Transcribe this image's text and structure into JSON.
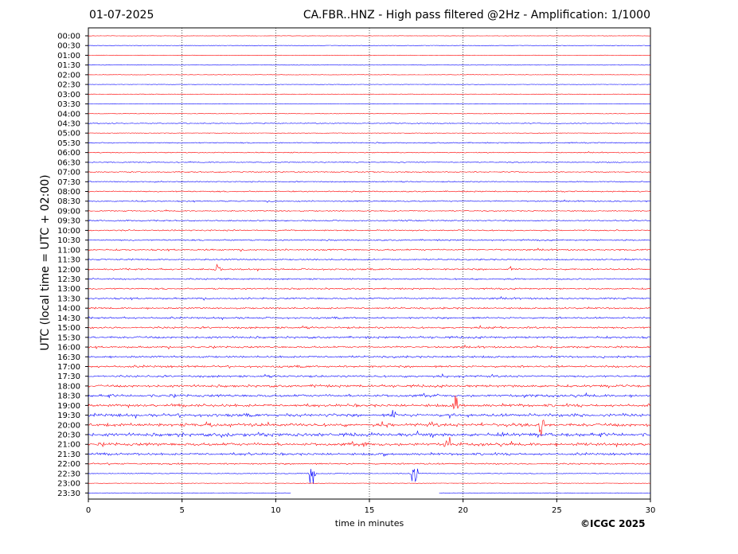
{
  "header": {
    "date": "01-07-2025",
    "title": "CA.FBR..HNZ - High pass filtered @2Hz - Amplification: 1/1000"
  },
  "footer": {
    "copyright": "©ICGC 2025"
  },
  "chart_data": {
    "type": "line",
    "xlabel": "time in minutes",
    "ylabel": "UTC (local time = UTC + 02:00)",
    "xlim": [
      0,
      30
    ],
    "x_ticks": [
      0,
      5,
      10,
      15,
      20,
      25,
      30
    ],
    "vertical_gridlines": [
      5,
      10,
      15,
      20,
      25
    ],
    "row_labels": [
      "00:00",
      "00:30",
      "01:00",
      "01:30",
      "02:00",
      "02:30",
      "03:00",
      "03:30",
      "04:00",
      "04:30",
      "05:00",
      "05:30",
      "06:00",
      "06:30",
      "07:00",
      "07:30",
      "08:00",
      "08:30",
      "09:00",
      "09:30",
      "10:00",
      "10:30",
      "11:00",
      "11:30",
      "12:00",
      "12:30",
      "13:00",
      "13:30",
      "14:00",
      "14:30",
      "15:00",
      "15:30",
      "16:00",
      "16:30",
      "17:00",
      "17:30",
      "18:00",
      "18:30",
      "19:00",
      "19:30",
      "20:00",
      "20:30",
      "21:00",
      "21:30",
      "22:00",
      "22:30",
      "23:00",
      "23:30"
    ],
    "trace_colors": [
      "#ff0000",
      "#0000ff"
    ],
    "activity_levels": [
      0.0,
      0.0,
      0.0,
      0.0,
      0.0,
      0.0,
      0.0,
      0.0,
      0.0,
      0.15,
      0.05,
      0.25,
      0.2,
      0.2,
      0.25,
      0.25,
      0.3,
      0.3,
      0.25,
      0.3,
      0.35,
      0.35,
      0.4,
      0.35,
      0.45,
      0.4,
      0.4,
      0.45,
      0.45,
      0.5,
      0.55,
      0.6,
      0.5,
      0.55,
      0.6,
      0.6,
      0.7,
      0.75,
      0.8,
      0.9,
      1.0,
      1.0,
      0.9,
      0.65,
      0.4,
      0.1,
      0.0,
      0.0
    ],
    "events": [
      {
        "row": 45,
        "minute": 11.9,
        "amplitude": 3.5
      },
      {
        "row": 45,
        "minute": 17.4,
        "amplitude": 3.5
      },
      {
        "row": 38,
        "minute": 19.6,
        "amplitude": 1.6
      },
      {
        "row": 40,
        "minute": 24.2,
        "amplitude": 2.2
      },
      {
        "row": 39,
        "minute": 16.3,
        "amplitude": 1.0
      },
      {
        "row": 24,
        "minute": 6.9,
        "amplitude": 0.8
      },
      {
        "row": 24,
        "minute": 22.6,
        "amplitude": 0.8
      },
      {
        "row": 42,
        "minute": 19.2,
        "amplitude": 1.2
      }
    ],
    "data_gap": {
      "row": 47,
      "from_minute": 10.8,
      "to_minute": 18.7
    }
  }
}
